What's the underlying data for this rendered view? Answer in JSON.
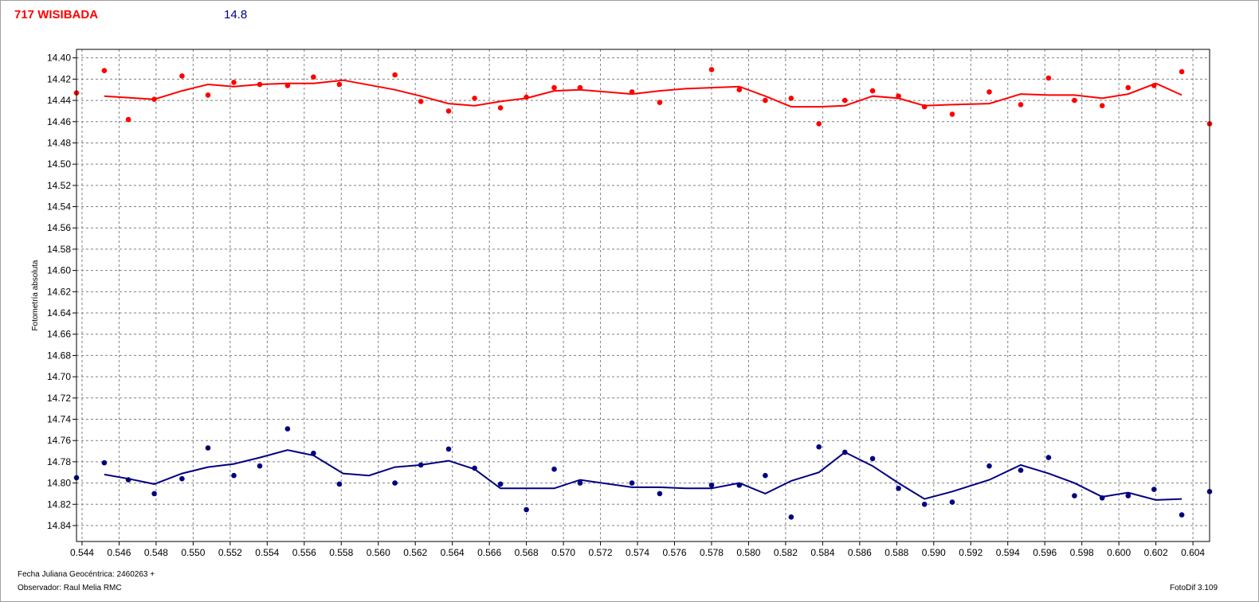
{
  "header": {
    "object_label": "717 WISIBADA",
    "magnitude_label": "14.8"
  },
  "footer": {
    "date_label": "Fecha Juliana Geocéntrica: 2460263 +",
    "observer_label": "Observador: Raul Melia RMC",
    "software_label": "FotoDif 3.109"
  },
  "colors": {
    "series_red": "#ff0000",
    "series_blue": "#000080",
    "grid": "#808080"
  },
  "chart_data": {
    "type": "scatter",
    "title": "",
    "xlabel": "",
    "ylabel": "Fotometría absoluta",
    "xlim": [
      0.5437,
      0.6049
    ],
    "ylim": [
      14.855,
      14.392
    ],
    "y_inverted": true,
    "grid": true,
    "x_ticks": [
      0.544,
      0.546,
      0.548,
      0.55,
      0.552,
      0.554,
      0.556,
      0.558,
      0.56,
      0.562,
      0.564,
      0.566,
      0.568,
      0.57,
      0.572,
      0.574,
      0.576,
      0.578,
      0.58,
      0.582,
      0.584,
      0.586,
      0.588,
      0.59,
      0.592,
      0.594,
      0.596,
      0.598,
      0.6,
      0.602,
      0.604
    ],
    "x_tick_labels": [
      "0.544",
      "0.546",
      "0.548",
      "0.550",
      "0.552",
      "0.554",
      "0.556",
      "0.558",
      "0.560",
      "0.562",
      "0.564",
      "0.566",
      "0.568",
      "0.570",
      "0.572",
      "0.574",
      "0.576",
      "0.578",
      "0.580",
      "0.582",
      "0.584",
      "0.586",
      "0.588",
      "0.590",
      "0.592",
      "0.594",
      "0.596",
      "0.598",
      "0.600",
      "0.602",
      "0.604"
    ],
    "y_ticks": [
      14.4,
      14.42,
      14.44,
      14.46,
      14.48,
      14.5,
      14.52,
      14.54,
      14.56,
      14.58,
      14.6,
      14.62,
      14.64,
      14.66,
      14.68,
      14.7,
      14.72,
      14.74,
      14.76,
      14.78,
      14.8,
      14.82,
      14.84
    ],
    "y_tick_labels": [
      "14.40",
      "14.42",
      "14.44",
      "14.46",
      "14.48",
      "14.50",
      "14.52",
      "14.54",
      "14.56",
      "14.58",
      "14.60",
      "14.62",
      "14.64",
      "14.66",
      "14.68",
      "14.70",
      "14.72",
      "14.74",
      "14.76",
      "14.78",
      "14.80",
      "14.82",
      "14.84"
    ],
    "series": [
      {
        "color": "#ff0000",
        "points": {
          "x": [
            0.5437,
            0.5452,
            0.5465,
            0.5479,
            0.5494,
            0.5508,
            0.5522,
            0.5536,
            0.5551,
            0.5565,
            0.5579,
            0.5609,
            0.5623,
            0.5638,
            0.5652,
            0.5666,
            0.568,
            0.5695,
            0.5709,
            0.5737,
            0.5752,
            0.578,
            0.5795,
            0.5809,
            0.5823,
            0.5838,
            0.5852,
            0.5867,
            0.5881,
            0.5895,
            0.591,
            0.593,
            0.5947,
            0.5962,
            0.5976,
            0.5991,
            0.6005,
            0.6019,
            0.6034,
            0.6049
          ],
          "y": [
            14.433,
            14.412,
            14.458,
            14.439,
            14.417,
            14.435,
            14.423,
            14.425,
            14.426,
            14.418,
            14.425,
            14.416,
            14.441,
            14.45,
            14.438,
            14.447,
            14.437,
            14.428,
            14.428,
            14.432,
            14.442,
            14.411,
            14.43,
            14.44,
            14.438,
            14.462,
            14.44,
            14.431,
            14.436,
            14.446,
            14.453,
            14.432,
            14.444,
            14.419,
            14.44,
            14.445,
            14.428,
            14.426,
            14.413,
            14.462
          ]
        },
        "line": {
          "x": [
            0.5452,
            0.5479,
            0.5494,
            0.5508,
            0.5522,
            0.5536,
            0.5551,
            0.5565,
            0.5581,
            0.5609,
            0.5623,
            0.5638,
            0.5652,
            0.5666,
            0.568,
            0.5695,
            0.5709,
            0.5737,
            0.5752,
            0.5766,
            0.578,
            0.5795,
            0.5809,
            0.5823,
            0.5838,
            0.5852,
            0.5867,
            0.5881,
            0.5895,
            0.591,
            0.593,
            0.5947,
            0.5962,
            0.5976,
            0.5991,
            0.6005,
            0.602,
            0.6034
          ],
          "y": [
            14.436,
            14.439,
            14.431,
            14.425,
            14.427,
            14.425,
            14.424,
            14.424,
            14.421,
            14.43,
            14.436,
            14.443,
            14.445,
            14.441,
            14.438,
            14.431,
            14.43,
            14.434,
            14.431,
            14.429,
            14.428,
            14.427,
            14.436,
            14.446,
            14.446,
            14.445,
            14.436,
            14.438,
            14.445,
            14.444,
            14.443,
            14.434,
            14.435,
            14.435,
            14.438,
            14.434,
            14.424,
            14.435
          ]
        }
      },
      {
        "color": "#000080",
        "points": {
          "x": [
            0.5437,
            0.5452,
            0.5465,
            0.5479,
            0.5494,
            0.5508,
            0.5522,
            0.5536,
            0.5551,
            0.5565,
            0.5579,
            0.5609,
            0.5623,
            0.5638,
            0.5652,
            0.5666,
            0.568,
            0.5695,
            0.5709,
            0.5737,
            0.5752,
            0.578,
            0.5795,
            0.5809,
            0.5823,
            0.5838,
            0.5852,
            0.5867,
            0.5881,
            0.5895,
            0.591,
            0.593,
            0.5947,
            0.5962,
            0.5976,
            0.5991,
            0.6005,
            0.6019,
            0.6034,
            0.6049
          ],
          "y": [
            14.795,
            14.781,
            14.797,
            14.81,
            14.796,
            14.767,
            14.793,
            14.784,
            14.749,
            14.772,
            14.801,
            14.8,
            14.783,
            14.768,
            14.786,
            14.801,
            14.825,
            14.787,
            14.8,
            14.8,
            14.81,
            14.802,
            14.802,
            14.793,
            14.832,
            14.766,
            14.771,
            14.777,
            14.805,
            14.82,
            14.818,
            14.784,
            14.788,
            14.776,
            14.812,
            14.814,
            14.812,
            14.806,
            14.83,
            14.808
          ]
        },
        "line": {
          "x": [
            0.5452,
            0.5465,
            0.5479,
            0.5494,
            0.5508,
            0.5522,
            0.5536,
            0.5551,
            0.5565,
            0.5581,
            0.5595,
            0.5609,
            0.5623,
            0.5638,
            0.5652,
            0.5666,
            0.568,
            0.5695,
            0.5709,
            0.5737,
            0.5752,
            0.5766,
            0.578,
            0.5795,
            0.5809,
            0.5823,
            0.5838,
            0.5852,
            0.5867,
            0.5881,
            0.5895,
            0.591,
            0.593,
            0.5947,
            0.5962,
            0.5976,
            0.5991,
            0.6005,
            0.602,
            0.6034
          ],
          "y": [
            14.792,
            14.796,
            14.801,
            14.791,
            14.785,
            14.782,
            14.776,
            14.769,
            14.774,
            14.791,
            14.793,
            14.785,
            14.783,
            14.779,
            14.787,
            14.805,
            14.805,
            14.805,
            14.797,
            14.804,
            14.804,
            14.805,
            14.805,
            14.8,
            14.81,
            14.798,
            14.79,
            14.771,
            14.784,
            14.8,
            14.815,
            14.808,
            14.797,
            14.783,
            14.791,
            14.8,
            14.813,
            14.809,
            14.816,
            14.815
          ]
        }
      }
    ]
  }
}
